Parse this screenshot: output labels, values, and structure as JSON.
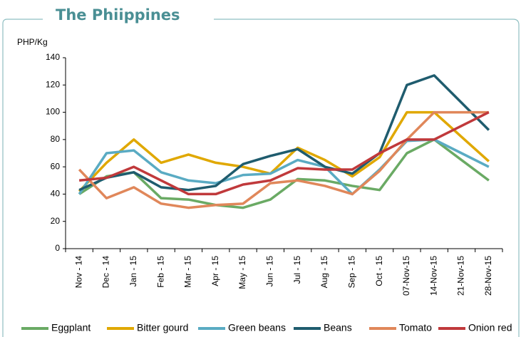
{
  "chart_data": {
    "type": "line",
    "title": "The Phiippines",
    "y_label": "PHP/Kg",
    "categories": [
      "Nov - 14",
      "Dec - 14",
      "Jan - 15",
      "Feb - 15",
      "Mar - 15",
      "Apr - 15",
      "May - 15",
      "Jun - 15",
      "Jul - 15",
      "Aug - 15",
      "Sep - 15",
      "Oct - 15",
      "07-Nov-15",
      "14-Nov-15",
      "21-Nov-15",
      "28-Nov-15"
    ],
    "series": [
      {
        "name": "Eggplant",
        "color": "#6aaa64",
        "values": [
          40,
          53,
          56,
          37,
          36,
          32,
          30,
          36,
          51,
          50,
          46,
          43,
          70,
          80,
          65,
          50
        ]
      },
      {
        "name": "Bitter gourd",
        "color": "#e0a800",
        "values": [
          42,
          63,
          80,
          63,
          69,
          63,
          60,
          55,
          74,
          65,
          53,
          67,
          100,
          100,
          82,
          64
        ]
      },
      {
        "name": "Green beans",
        "color": "#5aabc3",
        "values": [
          40,
          70,
          72,
          56,
          50,
          48,
          54,
          55,
          65,
          60,
          40,
          58,
          79,
          80,
          70,
          60
        ]
      },
      {
        "name": "Beans",
        "color": "#1f5c6e",
        "values": [
          43,
          52,
          56,
          45,
          43,
          46,
          62,
          68,
          73,
          60,
          55,
          70,
          120,
          127,
          107,
          87
        ]
      },
      {
        "name": "Tomato",
        "color": "#e0875a",
        "values": [
          58,
          37,
          45,
          33,
          30,
          32,
          33,
          48,
          50,
          46,
          40,
          57,
          80,
          100,
          100,
          100
        ]
      },
      {
        "name": "Onion red",
        "color": "#c0393b",
        "values": [
          50,
          52,
          60,
          50,
          40,
          40,
          47,
          50,
          59,
          58,
          58,
          70,
          80,
          80,
          90,
          100
        ]
      }
    ],
    "ylim": [
      0,
      140
    ],
    "yticks": [
      0,
      20,
      40,
      60,
      80,
      100,
      120,
      140
    ],
    "grid": false
  }
}
